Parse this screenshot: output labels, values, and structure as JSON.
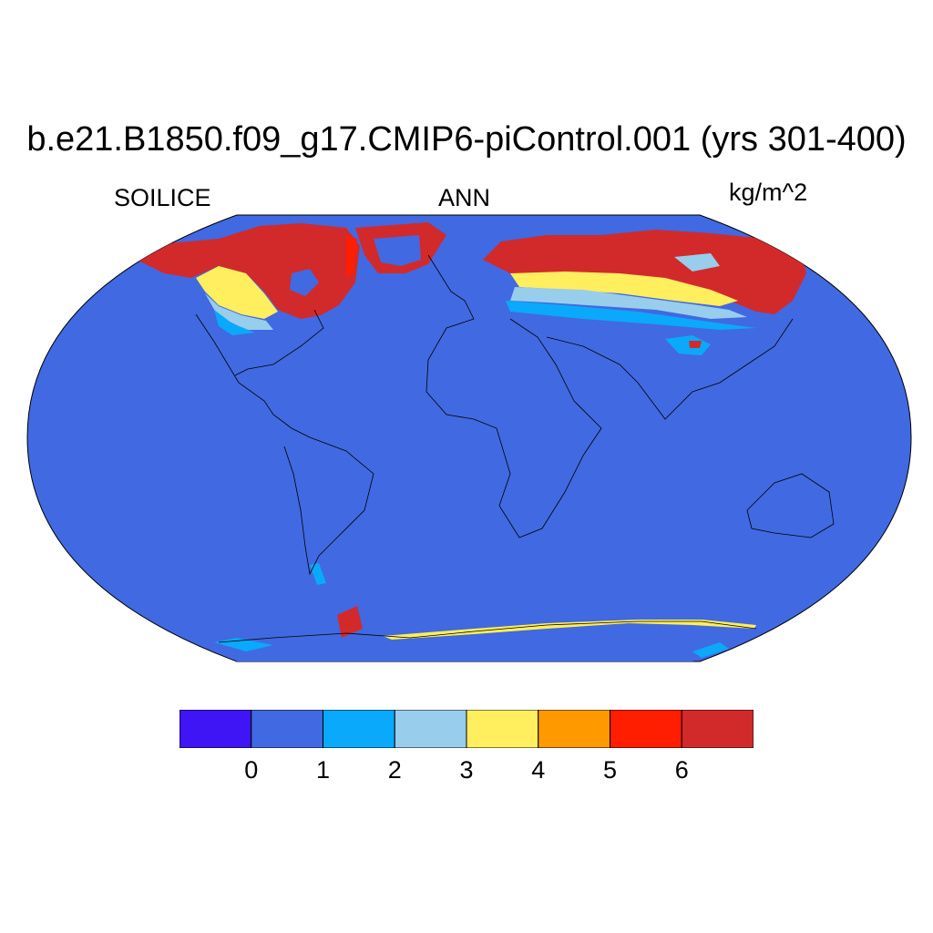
{
  "title": "b.e21.B1850.f09_g17.CMIP6-piControl.001 (yrs 301-400)",
  "subtitle": {
    "left": "SOILICE",
    "center": "ANN",
    "right": "kg/m^2"
  },
  "colors": {
    "ocean_fill": "#4169e1",
    "coast": "#000000"
  },
  "colorbar": {
    "colors": [
      "#3f14f5",
      "#4169e1",
      "#0aa9fb",
      "#98cdec",
      "#ffee5d",
      "#ff9900",
      "#ff1e00",
      "#d22a2a"
    ],
    "labels": [
      "0",
      "1",
      "2",
      "3",
      "4",
      "5",
      "6"
    ]
  },
  "chart_data": {
    "type": "heatmap",
    "title": "b.e21.B1850.f09_g17.CMIP6-piControl.001 (yrs 301-400)",
    "variable": "SOILICE",
    "season": "ANN",
    "units": "kg/m^2",
    "levels": [
      0,
      1,
      2,
      3,
      4,
      5,
      6
    ],
    "projection": "Robinson",
    "regions": [
      {
        "name": "Northern Canada & Alaska",
        "value_class": ">6"
      },
      {
        "name": "Greenland coast",
        "value_class": ">6"
      },
      {
        "name": "Northern Eurasia / Siberia",
        "value_class": ">6"
      },
      {
        "name": "Southern Canada",
        "value_class": "1-4"
      },
      {
        "name": "Central Asia",
        "value_class": "1-3"
      },
      {
        "name": "Tibetan Plateau",
        "value_class": "1-6"
      },
      {
        "name": "Southern Andes",
        "value_class": "1-3"
      },
      {
        "name": "Antarctic Peninsula & coast",
        "value_class": "1-6"
      },
      {
        "name": "Rest of globe",
        "value_class": "0-1"
      }
    ]
  }
}
